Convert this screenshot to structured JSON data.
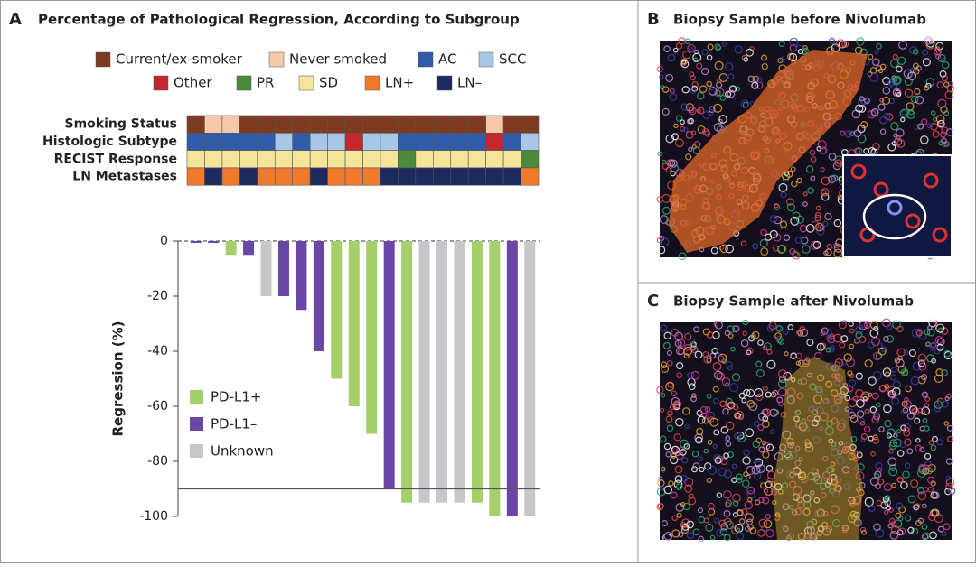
{
  "panel_label": "A",
  "chart_data": {
    "type": "bar",
    "title": "Percentage of Pathological Regression, According to Subgroup",
    "legend": [
      {
        "name": "Current/ex-smoker",
        "color": "#7d3b22"
      },
      {
        "name": "Never smoked",
        "color": "#f6c8aa"
      },
      {
        "name": "AC",
        "color": "#2f5ca6"
      },
      {
        "name": "SCC",
        "color": "#a8c7e6"
      },
      {
        "name": "Other",
        "color": "#c3262d"
      },
      {
        "name": "PR",
        "color": "#4b8a3b"
      },
      {
        "name": "SD",
        "color": "#f4e59b"
      },
      {
        "name": "LN+",
        "color": "#ef7a2b"
      },
      {
        "name": "LN–",
        "color": "#1d2a5e"
      }
    ],
    "heatmap": [
      {
        "label": "Smoking Status",
        "values": [
          "Current/ex-smoker",
          "Never smoked",
          "Never smoked",
          "Current/ex-smoker",
          "Current/ex-smoker",
          "Current/ex-smoker",
          "Current/ex-smoker",
          "Current/ex-smoker",
          "Current/ex-smoker",
          "Current/ex-smoker",
          "Current/ex-smoker",
          "Current/ex-smoker",
          "Current/ex-smoker",
          "Current/ex-smoker",
          "Current/ex-smoker",
          "Current/ex-smoker",
          "Current/ex-smoker",
          "Never smoked",
          "Current/ex-smoker",
          "Current/ex-smoker"
        ]
      },
      {
        "label": "Histologic Subtype",
        "values": [
          "AC",
          "AC",
          "AC",
          "AC",
          "AC",
          "SCC",
          "AC",
          "SCC",
          "SCC",
          "Other",
          "SCC",
          "SCC",
          "AC",
          "AC",
          "AC",
          "AC",
          "AC",
          "Other",
          "AC",
          "SCC"
        ]
      },
      {
        "label": "RECIST Response",
        "values": [
          "SD",
          "SD",
          "SD",
          "SD",
          "SD",
          "SD",
          "SD",
          "SD",
          "SD",
          "SD",
          "SD",
          "SD",
          "PR",
          "SD",
          "SD",
          "SD",
          "SD",
          "SD",
          "SD",
          "PR"
        ]
      },
      {
        "label": "LN Metastases",
        "values": [
          "LN+",
          "LN–",
          "LN+",
          "LN–",
          "LN+",
          "LN+",
          "LN+",
          "LN–",
          "LN+",
          "LN+",
          "LN+",
          "LN–",
          "LN–",
          "LN–",
          "LN–",
          "LN–",
          "LN–",
          "LN–",
          "LN–",
          "LN+"
        ]
      }
    ],
    "categories": [
      null,
      null,
      null,
      null,
      null,
      null,
      null,
      null,
      null,
      null,
      null,
      null,
      null,
      null,
      null,
      null,
      null,
      null,
      null,
      null
    ],
    "series": [
      {
        "name": "PD-L1+",
        "color": "#a4cf6b",
        "values": [
          null,
          null,
          -5,
          null,
          null,
          null,
          null,
          null,
          -50,
          -60,
          -70,
          null,
          -95,
          null,
          null,
          null,
          -95,
          -100,
          null,
          null
        ]
      },
      {
        "name": "PD-L1–",
        "color": "#6a47a7",
        "values": [
          0,
          0,
          null,
          -5,
          null,
          -20,
          -25,
          -40,
          null,
          null,
          null,
          -90,
          null,
          null,
          null,
          null,
          null,
          null,
          -100,
          null
        ]
      },
      {
        "name": "Unknown",
        "color": "#c5c7cb",
        "values": [
          null,
          null,
          null,
          null,
          -20,
          null,
          null,
          null,
          null,
          null,
          null,
          null,
          null,
          -95,
          -95,
          -95,
          null,
          null,
          null,
          -100
        ]
      }
    ],
    "y_label": "Regression (%)",
    "ylim": [
      -100,
      0
    ],
    "yticks": [
      0,
      -20,
      -40,
      -60,
      -80,
      -100
    ],
    "reference_line": -90
  },
  "panels": [
    {
      "label": "B",
      "title": "Biopsy Sample before Nivolumab"
    },
    {
      "label": "C",
      "title": "Biopsy Sample after Nivolumab"
    }
  ]
}
